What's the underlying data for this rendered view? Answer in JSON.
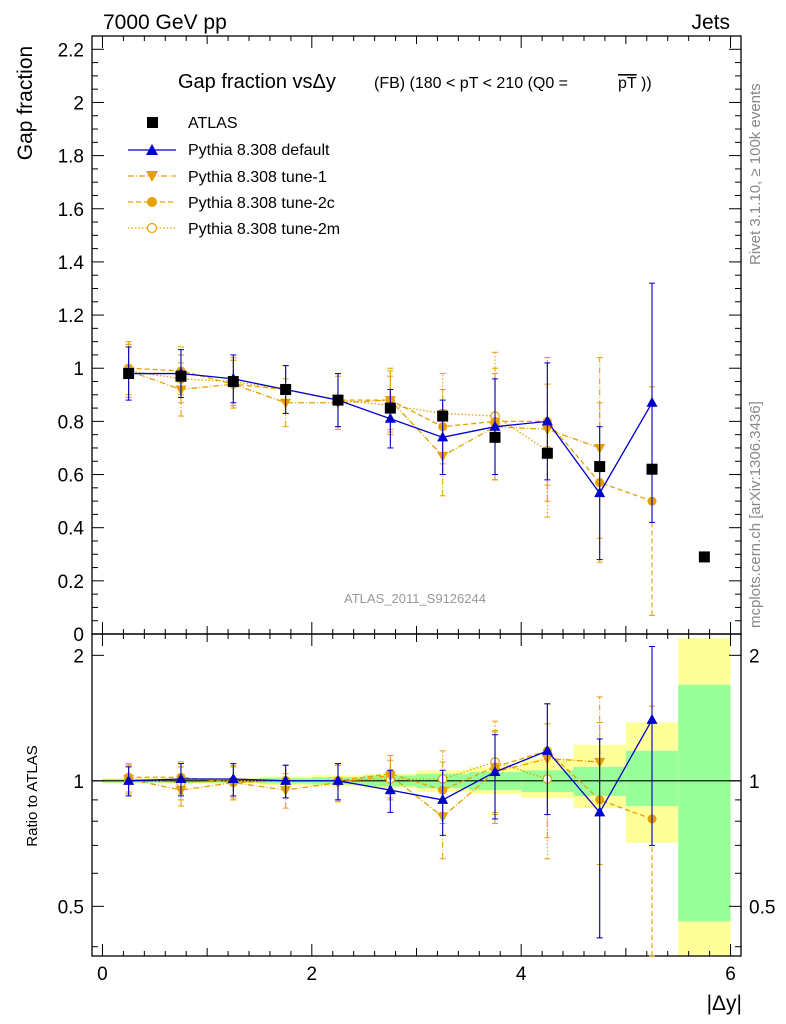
{
  "header": {
    "left": "7000 GeV pp",
    "right": "Jets"
  },
  "side": {
    "top": "Rivet 3.1.10, ≥ 100k events",
    "bottom": "mcplots.cern.ch [arXiv:1306.3436]"
  },
  "colors": {
    "atlas": "#000000",
    "default": "#0000cc",
    "tunes": "#e6a000",
    "band_inner": "#99ff99",
    "band_outer": "#ffff99"
  },
  "chart_data": {
    "type": "line",
    "title": "Gap fraction vsΔy",
    "title_suffix": "(FB) (180 < pT < 210 (Q0 = ",
    "title_pt": "pT",
    "title_close": "))",
    "watermark": "ATLAS_2011_S9126244",
    "ylabel": "Gap fraction",
    "ratio_ylabel": "Ratio to ATLAS",
    "xlabel": "|Δy|",
    "xlim": [
      -0.1,
      6.1
    ],
    "ylim": [
      0,
      2.25
    ],
    "ratio_ylim": [
      0.38,
      2.25
    ],
    "ratio_log": true,
    "x_ticks": [
      0,
      2,
      4,
      6
    ],
    "y_ticks": [
      0,
      0.2,
      0.4,
      0.6,
      0.8,
      1,
      1.2,
      1.4,
      1.6,
      1.8,
      2,
      2.2
    ],
    "ratio_ticks": [
      0.5,
      1,
      2
    ],
    "data": {
      "name": "ATLAS",
      "x": [
        0.25,
        0.75,
        1.25,
        1.75,
        2.25,
        2.75,
        3.25,
        3.75,
        4.25,
        4.75,
        5.25,
        5.75
      ],
      "y": [
        0.98,
        0.97,
        0.95,
        0.92,
        0.88,
        0.85,
        0.82,
        0.74,
        0.68,
        0.63,
        0.62,
        0.29
      ],
      "band_inner": [
        [
          0.99,
          1.01
        ],
        [
          0.99,
          1.01
        ],
        [
          0.99,
          1.01
        ],
        [
          0.985,
          1.015
        ],
        [
          0.98,
          1.02
        ],
        [
          0.97,
          1.03
        ],
        [
          0.96,
          1.04
        ],
        [
          0.95,
          1.05
        ],
        [
          0.94,
          1.06
        ],
        [
          0.92,
          1.08
        ],
        [
          0.87,
          1.18
        ],
        [
          0.46,
          1.7
        ]
      ],
      "band_outer": [
        [
          0.985,
          1.015
        ],
        [
          0.985,
          1.015
        ],
        [
          0.985,
          1.015
        ],
        [
          0.975,
          1.025
        ],
        [
          0.97,
          1.03
        ],
        [
          0.96,
          1.04
        ],
        [
          0.94,
          1.06
        ],
        [
          0.93,
          1.08
        ],
        [
          0.91,
          1.13
        ],
        [
          0.86,
          1.22
        ],
        [
          0.71,
          1.38
        ],
        [
          0.38,
          2.2
        ]
      ]
    },
    "series": [
      {
        "name": "Pythia 8.308 default",
        "color": "#0000cc",
        "style": "solid",
        "marker": "triangle-up",
        "y": [
          0.98,
          0.98,
          0.96,
          0.92,
          0.88,
          0.81,
          0.74,
          0.78,
          0.8,
          0.53,
          0.87
        ],
        "err": [
          0.1,
          0.09,
          0.09,
          0.09,
          0.1,
          0.11,
          0.14,
          0.18,
          0.22,
          0.25,
          0.45
        ],
        "ratio": [
          1.0,
          1.01,
          1.01,
          1.0,
          1.0,
          0.95,
          0.9,
          1.05,
          1.18,
          0.84,
          1.4
        ],
        "ratio_err": [
          0.08,
          0.09,
          0.09,
          0.09,
          0.1,
          0.11,
          0.16,
          0.24,
          0.35,
          0.42,
          0.7
        ]
      },
      {
        "name": "Pythia 8.308 tune-1",
        "color": "#e6a000",
        "style": "dashdot",
        "marker": "triangle-down",
        "y": [
          0.99,
          0.92,
          0.94,
          0.87,
          0.87,
          0.88,
          0.67,
          0.78,
          0.77,
          0.7,
          null
        ],
        "err": [
          0.1,
          0.1,
          0.09,
          0.09,
          0.1,
          0.12,
          0.15,
          0.2,
          0.27,
          0.34,
          null
        ],
        "ratio": [
          1.01,
          0.95,
          0.99,
          0.95,
          0.99,
          1.03,
          0.82,
          1.05,
          1.13,
          1.11,
          null
        ],
        "ratio_err": [
          0.08,
          0.08,
          0.09,
          0.09,
          0.1,
          0.12,
          0.17,
          0.26,
          0.4,
          0.48,
          null
        ]
      },
      {
        "name": "Pythia 8.308 tune-2c",
        "color": "#e6a000",
        "style": "dashed",
        "marker": "circle",
        "y": [
          1.0,
          0.99,
          0.94,
          0.92,
          0.88,
          0.88,
          0.78,
          0.8,
          0.8,
          0.57,
          0.5
        ],
        "err": [
          0.1,
          0.09,
          0.09,
          0.09,
          0.1,
          0.11,
          0.14,
          0.2,
          0.24,
          0.3,
          0.43
        ],
        "ratio": [
          1.02,
          1.02,
          0.99,
          1.0,
          1.0,
          1.04,
          0.95,
          1.08,
          1.18,
          0.9,
          0.81
        ],
        "ratio_err": [
          0.08,
          0.09,
          0.09,
          0.09,
          0.1,
          0.11,
          0.16,
          0.24,
          0.35,
          0.48,
          0.7
        ]
      },
      {
        "name": "Pythia 8.308 tune-2m",
        "color": "#e6a000",
        "style": "dotted",
        "marker": "circle-open",
        "y": [
          0.99,
          0.96,
          0.95,
          0.92,
          0.88,
          0.86,
          0.83,
          0.82,
          0.69,
          null,
          null
        ],
        "err": [
          0.1,
          0.09,
          0.09,
          0.09,
          0.1,
          0.11,
          0.15,
          0.24,
          0.25,
          null,
          null
        ],
        "ratio": [
          1.01,
          0.99,
          1.0,
          1.0,
          1.0,
          1.01,
          1.01,
          1.11,
          1.01,
          null,
          null
        ],
        "ratio_err": [
          0.08,
          0.09,
          0.09,
          0.09,
          0.1,
          0.11,
          0.17,
          0.28,
          0.36,
          null,
          null
        ]
      }
    ]
  }
}
